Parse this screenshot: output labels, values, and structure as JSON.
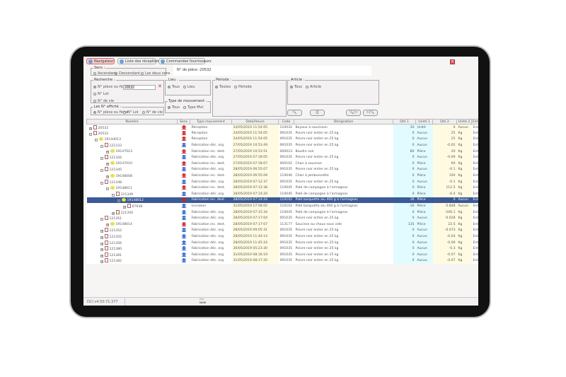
{
  "tabs": [
    {
      "label": "Navigateur",
      "active": true
    },
    {
      "label": "Liste des réceptions"
    },
    {
      "label": "Commandes fournisseurs"
    }
  ],
  "close_icon": "close-icon",
  "sens": {
    "title": "Sens :",
    "options": [
      "Ascendant",
      "Descendant",
      "Les deux sens"
    ],
    "selected": 1
  },
  "piece_label": "N° de pièce :20532",
  "recherche": {
    "title": "Recherche :",
    "options": [
      "N° pièce ou fiche",
      "N° Lot",
      "N° de vie"
    ],
    "selected": 0,
    "value": "20532"
  },
  "lieu": {
    "title": "Lieu :",
    "options": [
      "Tous",
      "Lieu"
    ],
    "selected": 0
  },
  "type_mvt": {
    "title": "Type de mouvement :",
    "options": [
      "Tous",
      "Type Mvt"
    ],
    "selected": 0
  },
  "periode": {
    "title": "Période :",
    "options": [
      "Toutes",
      "Période"
    ],
    "selected": 0
  },
  "article": {
    "title": "Article :",
    "options": [
      "Tous",
      "Article"
    ],
    "selected": 0
  },
  "affiche": {
    "title": "Les N° affiché :",
    "options": [
      "N° pièce ou fiche",
      "N° Lot",
      "N° de vie"
    ],
    "selected": 0
  },
  "toolbar_icons": [
    "search-icon",
    "print-icon",
    "first-icon",
    "last-icon"
  ],
  "colors": {
    "selected_row": "#3b5a96",
    "sens_in": "#cc2222",
    "sens_out": "#3366cc",
    "qty_col": "#e2fbff",
    "date_col": "#fffbe2"
  },
  "table": {
    "columns": [
      "Numéro",
      "Sens",
      "Type mouvement",
      "Date/Heure",
      "Code",
      "Désignation",
      "Qté 1",
      "Unité 1",
      "Qté 2",
      "Unité 2",
      "Ent"
    ],
    "rows": [
      {
        "level": 0,
        "exp": "+",
        "kind": "doc",
        "num": "20532",
        "sens": "in",
        "type": "Réception",
        "date": "24/05/2019 11:54:05",
        "code": "110032",
        "des": "Boyaux à saucisson",
        "q1": "30",
        "u1": "Unité",
        "q2": "0",
        "u2": "Aucun",
        "e": "Ent"
      },
      {
        "level": 0,
        "exp": "-",
        "kind": "doc",
        "num": "20532",
        "sens": "in",
        "type": "Réception",
        "date": "24/05/2019 11:54:05",
        "code": "091035",
        "des": "Poivre noir entier en 25 kg",
        "q1": "0",
        "u1": "Aucun",
        "q2": "25",
        "u2": "Kg",
        "e": "Ent"
      },
      {
        "level": 1,
        "exp": "-",
        "kind": "lot",
        "num": "19144013",
        "sens": "in",
        "type": "Réception",
        "date": "24/05/2019 11:54:05",
        "code": "091035",
        "des": "Poivre noir entier en 25 kg",
        "q1": "0",
        "u1": "Aucun",
        "q2": "25",
        "u2": "Kg",
        "e": "Ent"
      },
      {
        "level": 2,
        "exp": "-",
        "kind": "doc",
        "num": "121333",
        "sens": "out",
        "type": "Fabrication déc. org.",
        "date": "27/05/2019 10:53:49",
        "code": "091035",
        "des": "Poivre noir entier en 25 kg",
        "q1": "0",
        "u1": "Aucun",
        "q2": "-0.02",
        "u2": "Kg",
        "e": "Ent"
      },
      {
        "level": 3,
        "exp": "+",
        "kind": "lot",
        "num": "19147023",
        "sens": "in",
        "type": "Fabrication inc. dest.",
        "date": "27/05/2019 10:53:51",
        "code": "000023",
        "des": "Boudin noir",
        "q1": "80",
        "u1": "Pièce",
        "q2": "20",
        "u2": "Kg",
        "e": "Ent"
      },
      {
        "level": 2,
        "exp": "-",
        "kind": "doc",
        "num": "121326",
        "sens": "out",
        "type": "Fabrication déc. org.",
        "date": "27/05/2019 07:18:05",
        "code": "091035",
        "des": "Poivre noir entier en 25 kg",
        "q1": "0",
        "u1": "Aucun",
        "q2": "-0.09",
        "u2": "Kg",
        "e": "Ent"
      },
      {
        "level": 3,
        "exp": "+",
        "kind": "lot",
        "num": "19147010",
        "sens": "in",
        "type": "Fabrication inc. dest.",
        "date": "27/05/2019 07:18:07",
        "code": "000102",
        "des": "Chair à saucisse",
        "q1": "0",
        "u1": "Pièce",
        "q2": "90",
        "u2": "Kg",
        "e": "Ent"
      },
      {
        "level": 2,
        "exp": "-",
        "kind": "doc",
        "num": "121345",
        "sens": "out",
        "type": "Fabrication déc. org.",
        "date": "28/05/2019 06:55:07",
        "code": "091035",
        "des": "Poivre noir entier en 25 kg",
        "q1": "0",
        "u1": "Aucun",
        "q2": "-0.1",
        "u2": "Kg",
        "e": "Ent"
      },
      {
        "level": 3,
        "exp": "+",
        "kind": "lot",
        "num": "19148008",
        "sens": "in",
        "type": "Fabrication inc. dest.",
        "date": "28/05/2019 06:55:09",
        "code": "110040",
        "des": "Chair à jambonnette",
        "q1": "0",
        "u1": "Pièce",
        "q2": "100",
        "u2": "Kg",
        "e": "Ent"
      },
      {
        "level": 2,
        "exp": "-",
        "kind": "doc",
        "num": "121348",
        "sens": "out",
        "type": "Fabrication déc. org.",
        "date": "28/05/2019 07:12:37",
        "code": "091035",
        "des": "Poivre noir entier en 25 kg",
        "q1": "0",
        "u1": "Aucun",
        "q2": "-0.1",
        "u2": "Kg",
        "e": "Ent"
      },
      {
        "level": 3,
        "exp": "-",
        "kind": "lot",
        "num": "19148011",
        "sens": "in",
        "type": "Fabrication inc. dest.",
        "date": "28/05/2019 07:12:38",
        "code": "110045",
        "des": "Paté de campagne à l'armagnac",
        "q1": "0",
        "u1": "Pièce",
        "q2": "112.5",
        "u2": "Kg",
        "e": "Ent"
      },
      {
        "level": 4,
        "exp": "-",
        "kind": "doc",
        "num": "121349",
        "sens": "out",
        "type": "Fabrication déc. org.",
        "date": "28/05/2019 07:14:20",
        "code": "110045",
        "des": "Paté de campagne à l'armagnac",
        "q1": "0",
        "u1": "Pièce",
        "q2": "-6.4",
        "u2": "Kg",
        "e": "Ent"
      },
      {
        "level": 5,
        "exp": "-",
        "kind": "lot",
        "num": "19148012",
        "sens": "in",
        "type": "Fabrication inc. dest.",
        "date": "28/05/2019 07:14:24",
        "code": "110102",
        "des": "Paté barquette alu 400 g à l'armagnac",
        "q1": "16",
        "u1": "Pièce",
        "q2": "0",
        "u2": "Aucun",
        "e": "Ent",
        "selected": true
      },
      {
        "level": 6,
        "exp": "+",
        "kind": "doc",
        "num": "67938",
        "sens": "out",
        "type": "Livraison",
        "date": "31/05/2019 17:58:02",
        "code": "110102",
        "des": "Paté barquette alu 400 g à l'armagnac",
        "q1": "-16",
        "u1": "Pièce",
        "q2": "-5.848",
        "u2": "Aucun",
        "e": "Ent"
      },
      {
        "level": 4,
        "exp": "+",
        "kind": "doc",
        "num": "121350",
        "sens": "out",
        "type": "Fabrication déc. org.",
        "date": "28/05/2019 07:15:34",
        "code": "110045",
        "des": "Paté de campagne à l'armagnac",
        "q1": "0",
        "u1": "Pièce",
        "q2": "-106.1",
        "u2": "Kg",
        "e": "Ent"
      },
      {
        "level": 2,
        "exp": "-",
        "kind": "doc",
        "num": "121351",
        "sens": "out",
        "type": "Fabrication déc. org.",
        "date": "28/05/2019 07:17:04",
        "code": "091035",
        "des": "Poivre noir entier en 25 kg",
        "q1": "0",
        "u1": "Aucun",
        "q2": "-0.028",
        "u2": "Kg",
        "e": "Ent"
      },
      {
        "level": 3,
        "exp": "+",
        "kind": "lot",
        "num": "19148014",
        "sens": "in",
        "type": "Fabrication inc. dest.",
        "date": "28/05/2019 07:17:07",
        "code": "113177",
        "des": "Saucisse au choux sous vide",
        "q1": "135",
        "u1": "Pièce",
        "q2": "22.5",
        "u2": "Kg",
        "e": "Ent"
      },
      {
        "level": 2,
        "exp": "+",
        "kind": "doc",
        "num": "121352",
        "sens": "out",
        "type": "Fabrication déc. org.",
        "date": "28/05/2019 09:05:31",
        "code": "091035",
        "des": "Poivre noir entier en 25 kg",
        "q1": "0",
        "u1": "Aucun",
        "q2": "-0.073",
        "u2": "Kg",
        "e": "Ent"
      },
      {
        "level": 2,
        "exp": "+",
        "kind": "doc",
        "num": "121355",
        "sens": "out",
        "type": "Fabrication déc. org.",
        "date": "28/05/2019 11:44:14",
        "code": "091035",
        "des": "Poivre noir entier en 25 kg",
        "q1": "0",
        "u1": "Aucun",
        "q2": "-0.04",
        "u2": "Kg",
        "e": "Ent"
      },
      {
        "level": 2,
        "exp": "+",
        "kind": "doc",
        "num": "121356",
        "sens": "out",
        "type": "Fabrication déc. org.",
        "date": "28/05/2019 11:45:24",
        "code": "091035",
        "des": "Poivre noir entier en 25 kg",
        "q1": "0",
        "u1": "Aucun",
        "q2": "-0.06",
        "u2": "Kg",
        "e": "Ent"
      },
      {
        "level": 2,
        "exp": "+",
        "kind": "doc",
        "num": "121380",
        "sens": "out",
        "type": "Fabrication déc. org.",
        "date": "30/05/2019 05:23:30",
        "code": "091035",
        "des": "Poivre noir entier en 25 kg",
        "q1": "0",
        "u1": "Aucun",
        "q2": "-0.3",
        "u2": "Kg",
        "e": "Ent"
      },
      {
        "level": 2,
        "exp": "+",
        "kind": "doc",
        "num": "121381",
        "sens": "out",
        "type": "Fabrication déc. org.",
        "date": "31/05/2019 08:16:19",
        "code": "091035",
        "des": "Poivre noir entier en 25 kg",
        "q1": "0",
        "u1": "Aucun",
        "q2": "-0.07",
        "u2": "Kg",
        "e": "Ent"
      },
      {
        "level": 2,
        "exp": "+",
        "kind": "doc",
        "num": "121382",
        "sens": "out",
        "type": "Fabrication déc. org.",
        "date": "31/05/2019 08:17:20",
        "code": "091035",
        "des": "Poivre noir entier en 25 kg",
        "q1": "0",
        "u1": "Aucun",
        "q2": "-0.07",
        "u2": "Kg",
        "e": "Ent"
      }
    ]
  },
  "status": {
    "version": "DCI v4.50.71.377",
    "maj": "MAJ",
    "num": "NUM"
  }
}
